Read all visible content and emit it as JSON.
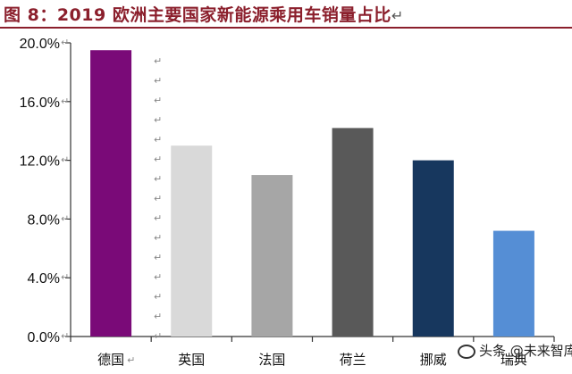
{
  "title": {
    "text": "图 8：2019 欧洲主要国家新能源乘用车销量占比",
    "mark": "↵"
  },
  "chart_data": {
    "type": "bar",
    "title": "",
    "categories": [
      "德国",
      "英国",
      "法国",
      "荷兰",
      "挪威",
      "瑞典"
    ],
    "values": [
      19.5,
      13.0,
      11.0,
      14.2,
      12.0,
      7.2
    ],
    "colors": [
      "#7a0a78",
      "#d9d9d9",
      "#a6a6a6",
      "#595959",
      "#17375e",
      "#558ed5"
    ],
    "ylim": [
      0,
      20
    ],
    "yticks": [
      "0.0%",
      "4.0%",
      "8.0%",
      "12.0%",
      "16.0%",
      "20.0%"
    ],
    "ytick_values": [
      0,
      4,
      8,
      12,
      16,
      20
    ],
    "unit": "%",
    "xlabel": "",
    "ylabel": "",
    "grid": false,
    "legend": "none"
  },
  "watermark": "头条 @未来智库"
}
